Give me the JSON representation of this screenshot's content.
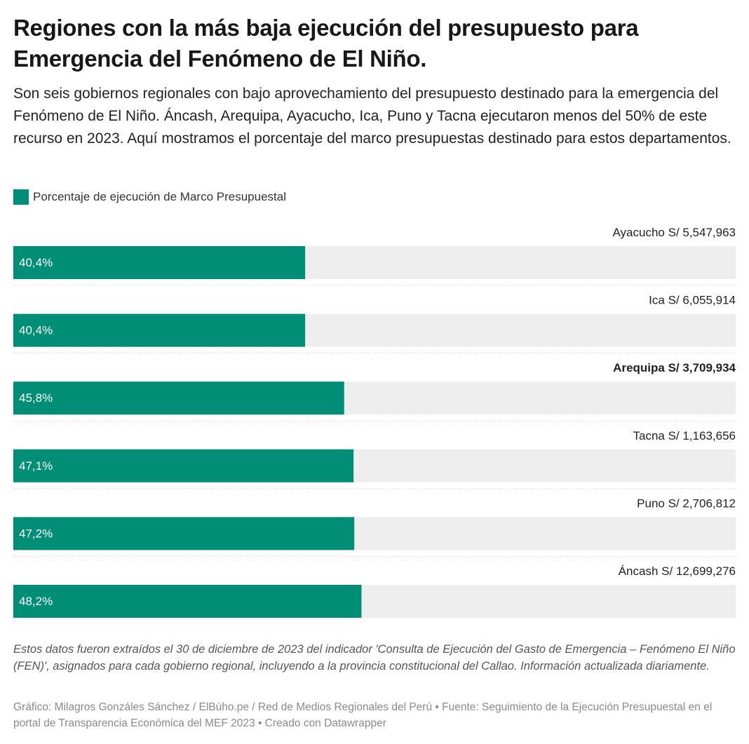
{
  "chart_data": {
    "type": "bar",
    "orientation": "horizontal",
    "title": "Regiones con la más baja ejecución del presupuesto para Emergencia del Fenómeno de El Niño.",
    "subtitle": "Son seis gobiernos regionales con bajo aprovechamiento del presupuesto destinado para la emergencia del Fenómeno de El Niño. Áncash, Arequipa, Ayacucho, Ica, Puno y Tacna ejecutaron menos del 50% de este recurso en 2023. Aquí mostramos el porcentaje del marco presupuestas destinado para estos departamentos.",
    "categories": [
      "Ayacucho S/ 5,547,963",
      "Ica S/ 6,055,914",
      "Arequipa S/ 3,709,934",
      "Tacna S/ 1,163,656",
      "Puno S/ 2,706,812",
      "Áncash S/ 12,699,276"
    ],
    "bold": [
      false,
      false,
      true,
      false,
      false,
      false
    ],
    "series": [
      {
        "name": "Porcentaje de ejecución de Marco Presupuestal",
        "color": "#008f76",
        "values": [
          40.4,
          40.4,
          45.8,
          47.1,
          47.2,
          48.2
        ],
        "value_labels": [
          "40,4%",
          "40,4%",
          "45,8%",
          "47,1%",
          "47,2%",
          "48,2%"
        ]
      }
    ],
    "xlim": [
      0,
      100
    ],
    "note": "Estos datos fueron extraídos el 30 de diciembre de 2023 del indicador 'Consulta de Ejecución del Gasto de Emergencia – Fenómeno El Niño (FEN)', asignados para cada gobierno regional, incluyendo a la provincia constitucional del Callao. Información actualizada diariamente.",
    "credits": "Gráfico: Milagros Gonzáles Sánchez / ElBúho.pe / Red de Medios Regionales del Perú • Fuente: Seguimiento de la Ejecución Presupuestal en el portal de Transparencia Económica del MEF 2023 • Creado con Datawrapper"
  }
}
